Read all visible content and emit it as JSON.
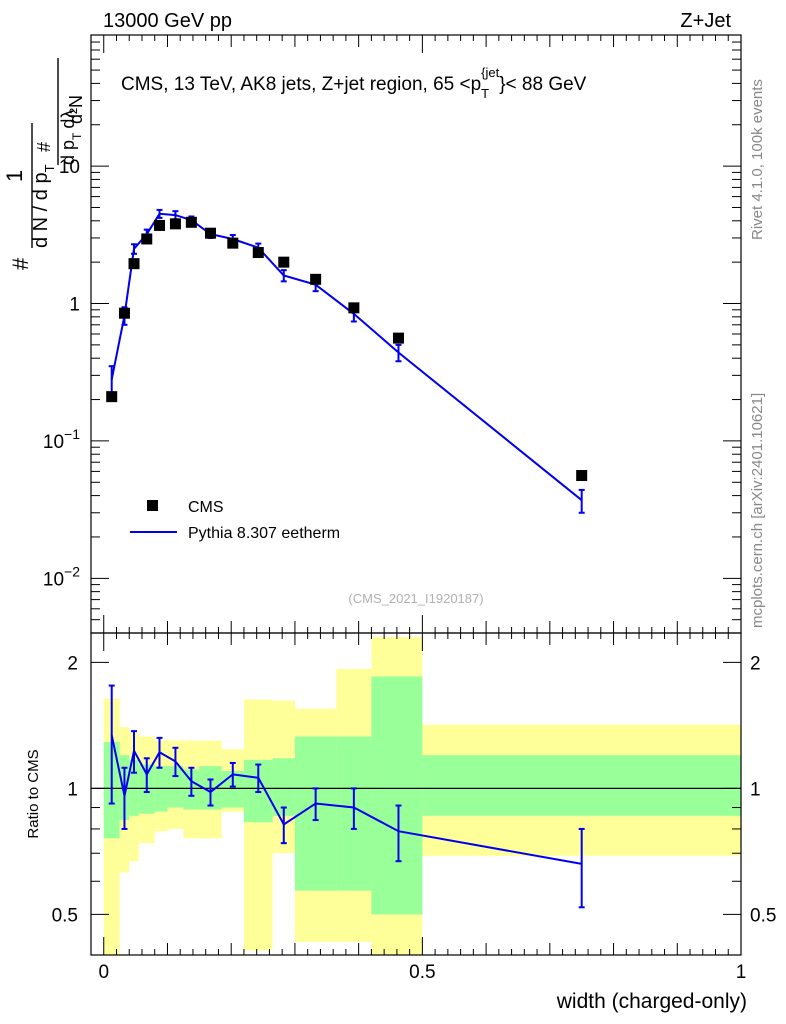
{
  "header": {
    "left": "13000 GeV pp",
    "right": "Z+Jet"
  },
  "side_text": {
    "top": "Rivet 4.1.0,  100k events",
    "bottom": "mcplots.cern.ch [arXiv:2401.10621]"
  },
  "colors": {
    "data": "#000000",
    "mc": "#0000ee",
    "band_inner": "#99ff99",
    "band_outer": "#ffff99"
  },
  "chart_data": [
    {
      "type": "scatter",
      "title": "CMS, 13 TeV, AK8 jets, Z+jet region, 65 <p_T^{jet}}< 88 GeV",
      "title_parts": {
        "main": "CMS, 13 TeV, AK8 jets, Z+jet region, 65 <p",
        "sup": "{jet",
        "sub": "T",
        "tail": "}< 88 GeV"
      },
      "analysis_tag": "(CMS_2021_I1920187)",
      "ylabel": "1/(dN/dpT) d2N/(dpT dλ)",
      "ylabel_parts": {
        "hash": "#",
        "one": "1",
        "den": "d N / d p",
        "T": "T",
        "num_left": "#",
        "num_right": "d",
        "right_num": "d²N",
        "right_den": "d p",
        "lam": "dλ"
      },
      "yscale": "log",
      "ylim": [
        0.004,
        90
      ],
      "xlim": [
        -0.02,
        1.0
      ],
      "yticks": [
        {
          "v": 0.01,
          "base": "10",
          "exp": "−2"
        },
        {
          "v": 0.1,
          "base": "10",
          "exp": "−1"
        },
        {
          "v": 1,
          "label": "1"
        },
        {
          "v": 10,
          "label": "10"
        }
      ],
      "legend": {
        "position": "bottom-left",
        "data_label": "CMS",
        "mc_label": "Pythia 8.307 eetherm"
      },
      "series": [
        {
          "name": "CMS",
          "x": [
            0.0125,
            0.0325,
            0.0475,
            0.0675,
            0.0875,
            0.1125,
            0.1375,
            0.1675,
            0.2025,
            0.2425,
            0.2825,
            0.3325,
            0.3925,
            0.4625,
            0.75
          ],
          "y": [
            0.21,
            0.85,
            1.95,
            2.95,
            3.7,
            3.8,
            3.9,
            3.25,
            2.75,
            2.35,
            2.0,
            1.5,
            0.93,
            0.56,
            0.056
          ]
        },
        {
          "name": "Pythia 8.307 eetherm",
          "x": [
            0.0125,
            0.0325,
            0.0475,
            0.0675,
            0.0875,
            0.1125,
            0.1375,
            0.1675,
            0.2025,
            0.2425,
            0.2825,
            0.3325,
            0.3925,
            0.4625,
            0.75
          ],
          "y": [
            0.28,
            0.82,
            2.5,
            3.2,
            4.5,
            4.4,
            4.05,
            3.2,
            2.95,
            2.55,
            1.6,
            1.37,
            0.84,
            0.44,
            0.037
          ],
          "err": [
            0.07,
            0.12,
            0.2,
            0.25,
            0.3,
            0.3,
            0.25,
            0.2,
            0.2,
            0.18,
            0.15,
            0.14,
            0.1,
            0.06,
            0.007
          ]
        }
      ]
    },
    {
      "type": "line",
      "ylabel": "Ratio to CMS",
      "xlabel": "width (charged-only)",
      "ylim": [
        0.4,
        2.35
      ],
      "xlim": [
        -0.02,
        1.0
      ],
      "yticks": [
        0.5,
        1,
        2
      ],
      "xticks": [
        0,
        0.5,
        1
      ],
      "bin_edges": [
        0.0,
        0.025,
        0.04,
        0.055,
        0.08,
        0.1,
        0.125,
        0.15,
        0.185,
        0.22,
        0.265,
        0.3,
        0.365,
        0.42,
        0.5,
        1.0
      ],
      "band_inner": [
        [
          0.76,
          1.29
        ],
        [
          0.84,
          1.2
        ],
        [
          0.86,
          1.17
        ],
        [
          0.87,
          1.14
        ],
        [
          0.88,
          1.13
        ],
        [
          0.9,
          1.13
        ],
        [
          0.89,
          1.11
        ],
        [
          0.89,
          1.13
        ],
        [
          0.9,
          1.1
        ],
        [
          0.83,
          1.17
        ],
        [
          0.86,
          1.18
        ],
        [
          0.57,
          1.33
        ],
        [
          0.57,
          1.33
        ],
        [
          0.5,
          1.85
        ],
        [
          0.86,
          1.2
        ]
      ],
      "band_outer": [
        [
          0.4,
          1.64
        ],
        [
          0.63,
          1.4
        ],
        [
          0.67,
          1.36
        ],
        [
          0.74,
          1.33
        ],
        [
          0.79,
          1.3
        ],
        [
          0.8,
          1.3
        ],
        [
          0.76,
          1.3
        ],
        [
          0.76,
          1.3
        ],
        [
          0.88,
          1.24
        ],
        [
          0.41,
          1.63
        ],
        [
          0.7,
          1.62
        ],
        [
          0.43,
          1.55
        ],
        [
          0.43,
          1.93
        ],
        [
          0.36,
          2.3
        ],
        [
          0.69,
          1.42
        ]
      ],
      "ratio": {
        "x": [
          0.0125,
          0.0325,
          0.0475,
          0.0675,
          0.0875,
          0.1125,
          0.1375,
          0.1675,
          0.2025,
          0.2425,
          0.2825,
          0.3325,
          0.3925,
          0.4625,
          0.75
        ],
        "y": [
          1.34,
          0.96,
          1.23,
          1.08,
          1.22,
          1.16,
          1.04,
          0.98,
          1.08,
          1.06,
          0.82,
          0.92,
          0.9,
          0.79,
          0.66
        ],
        "err": [
          0.42,
          0.16,
          0.14,
          0.1,
          0.1,
          0.09,
          0.08,
          0.07,
          0.07,
          0.08,
          0.08,
          0.08,
          0.1,
          0.12,
          0.14
        ]
      }
    }
  ]
}
